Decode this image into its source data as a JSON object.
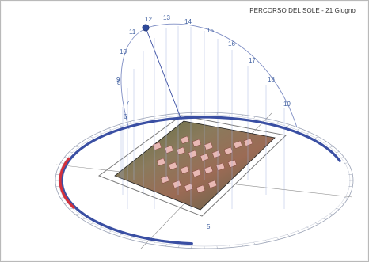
{
  "title": "PERCORSO DEL SOLE  - 21 Giugno",
  "hours": [
    {
      "label": "5"
    },
    {
      "label": "6"
    },
    {
      "label": "7"
    },
    {
      "label": "8"
    },
    {
      "label": "9"
    },
    {
      "label": "10"
    },
    {
      "label": "11"
    },
    {
      "label": "12"
    },
    {
      "label": "13"
    },
    {
      "label": "14"
    },
    {
      "label": "15"
    },
    {
      "label": "16"
    },
    {
      "label": "17"
    },
    {
      "label": "18"
    },
    {
      "label": "19"
    }
  ],
  "colors": {
    "sun": "#2f4a9a",
    "sun_path": "#7f8ec4",
    "morning_arc": "#d3303c",
    "day_arc": "#3a4fa3",
    "plate": "#9a9a9a"
  }
}
